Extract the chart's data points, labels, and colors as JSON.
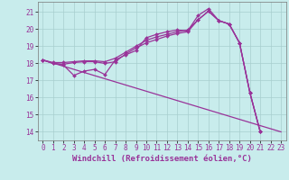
{
  "xlabel": "Windchill (Refroidissement éolien,°C)",
  "background_color": "#c8ecec",
  "line_color": "#993399",
  "grid_color": "#b0d0d0",
  "xlim": [
    -0.5,
    23.5
  ],
  "ylim": [
    13.5,
    21.6
  ],
  "xticks": [
    0,
    1,
    2,
    3,
    4,
    5,
    6,
    7,
    8,
    9,
    10,
    11,
    12,
    13,
    14,
    15,
    16,
    17,
    18,
    19,
    20,
    21,
    22,
    23
  ],
  "yticks": [
    14,
    15,
    16,
    17,
    18,
    19,
    20,
    21
  ],
  "line1_x": [
    0,
    1,
    2,
    3,
    4,
    5,
    6,
    7,
    8,
    9,
    10,
    11,
    12,
    13,
    14,
    15,
    16,
    17,
    18,
    19,
    20,
    21,
    22,
    23
  ],
  "line1_y": [
    18.2,
    18.0,
    17.9,
    17.3,
    17.55,
    17.65,
    17.35,
    18.2,
    18.5,
    18.75,
    19.5,
    19.7,
    19.85,
    19.95,
    19.9,
    20.8,
    21.2,
    20.5,
    20.3,
    19.2,
    16.3,
    14.0,
    null,
    null
  ],
  "line2_x": [
    0,
    1,
    2,
    3,
    4,
    5,
    6,
    7,
    8,
    9,
    10,
    11,
    12,
    13,
    14,
    15,
    16,
    17,
    18,
    19,
    20,
    21,
    22,
    23
  ],
  "line2_y": [
    18.2,
    18.0,
    17.95,
    18.05,
    18.1,
    18.1,
    18.0,
    18.1,
    18.55,
    18.9,
    19.2,
    19.4,
    19.6,
    19.75,
    19.85,
    20.55,
    21.05,
    20.5,
    20.3,
    19.2,
    16.3,
    14.0,
    null,
    null
  ],
  "line3_x": [
    0,
    1,
    2,
    3,
    4,
    5,
    6,
    7,
    8,
    9,
    10,
    11,
    12,
    13,
    14,
    15,
    16,
    17,
    18,
    19,
    20,
    21,
    22,
    23
  ],
  "line3_y": [
    18.2,
    18.05,
    18.05,
    18.1,
    18.15,
    18.15,
    18.1,
    18.3,
    18.65,
    19.0,
    19.35,
    19.55,
    19.7,
    19.85,
    19.95,
    20.55,
    21.05,
    20.5,
    20.3,
    19.2,
    16.3,
    14.0,
    null,
    null
  ],
  "line4_x": [
    0,
    23
  ],
  "line4_y": [
    18.2,
    14.0
  ],
  "font_size_xlabel": 6.5,
  "font_size_ticks": 5.5,
  "marker": "D",
  "marker_size": 2.0,
  "linewidth": 0.9
}
